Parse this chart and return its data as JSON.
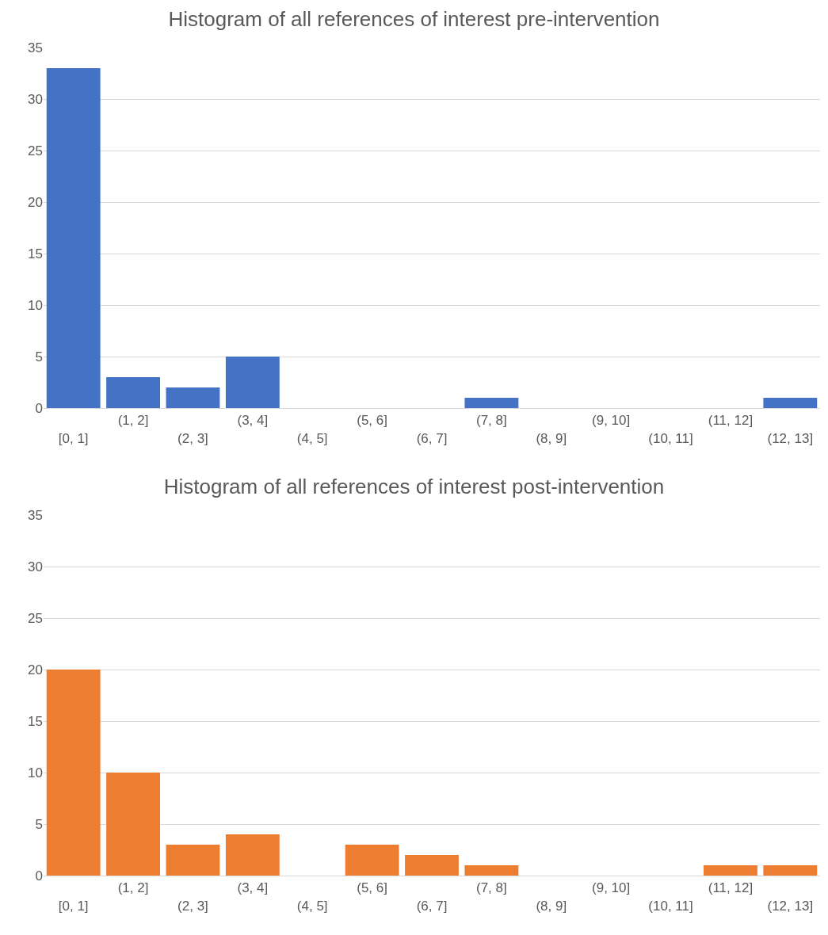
{
  "chart_data": [
    {
      "type": "bar",
      "title": "Histogram of all references of interest pre-intervention",
      "categories": [
        "[0, 1]",
        "(1, 2]",
        "(2, 3]",
        "(3, 4]",
        "(4, 5]",
        "(5, 6]",
        "(6, 7]",
        "(7, 8]",
        "(8, 9]",
        "(9, 10]",
        "(10, 11]",
        "(11, 12]",
        "(12, 13]"
      ],
      "values": [
        33,
        3,
        2,
        5,
        0,
        0,
        0,
        1,
        0,
        0,
        0,
        0,
        1
      ],
      "color": "#4472c4",
      "ylim": [
        0,
        35
      ],
      "yticks": [
        0,
        5,
        10,
        15,
        20,
        25,
        30,
        35
      ],
      "grid": "y"
    },
    {
      "type": "bar",
      "title": "Histogram of all references of interest post-intervention",
      "categories": [
        "[0, 1]",
        "(1, 2]",
        "(2, 3]",
        "(3, 4]",
        "(4, 5]",
        "(5, 6]",
        "(6, 7]",
        "(7, 8]",
        "(8, 9]",
        "(9, 10]",
        "(10, 11]",
        "(11, 12]",
        "(12, 13]"
      ],
      "values": [
        20,
        10,
        3,
        4,
        0,
        3,
        2,
        1,
        0,
        0,
        0,
        1,
        1
      ],
      "color": "#ed7d31",
      "ylim": [
        0,
        35
      ],
      "yticks": [
        0,
        5,
        10,
        15,
        20,
        25,
        30,
        35
      ],
      "grid": "y"
    }
  ]
}
